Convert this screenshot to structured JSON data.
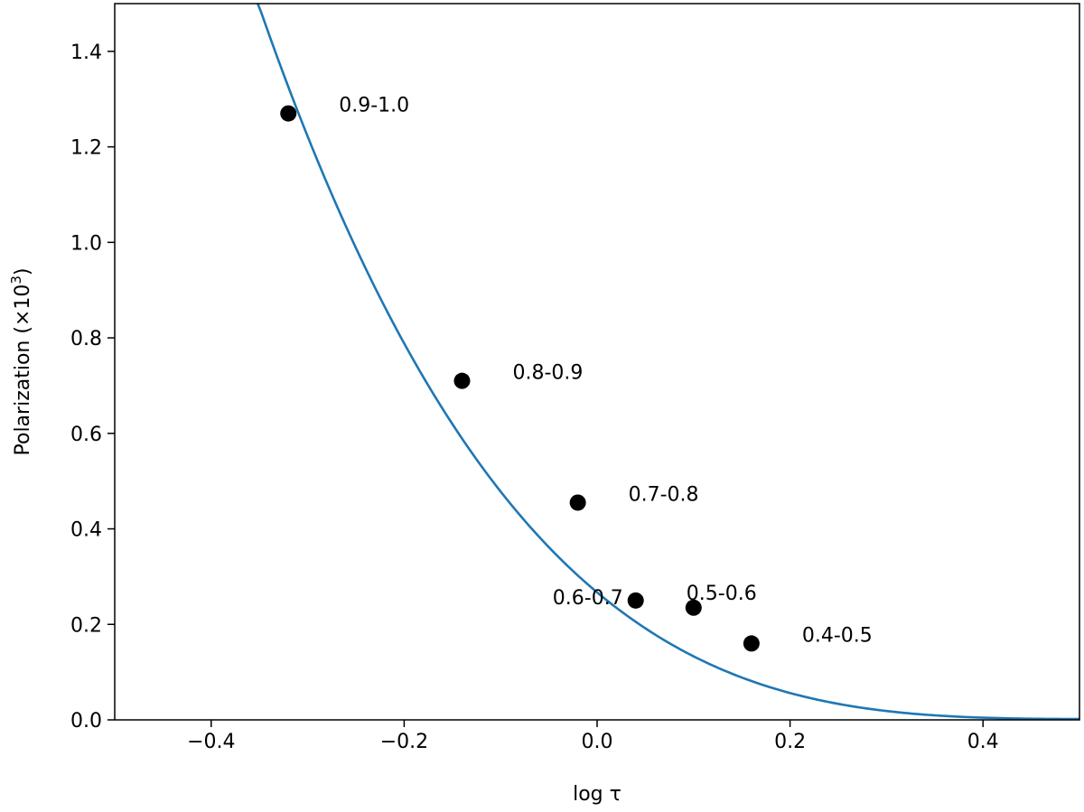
{
  "chart_data": {
    "type": "scatter",
    "title": "",
    "xlabel": "log τ",
    "ylabel": "Polarization (×10",
    "ylabel_sup": "3",
    "ylabel_close": ")",
    "xlim": [
      -0.5,
      0.5
    ],
    "ylim": [
      0.0,
      1.5
    ],
    "xticks": [
      -0.4,
      -0.2,
      0.0,
      0.2,
      0.4
    ],
    "xtick_labels": [
      "−0.4",
      "−0.2",
      "0.0",
      "0.2",
      "0.4"
    ],
    "yticks": [
      0.0,
      0.2,
      0.4,
      0.6,
      0.8,
      1.0,
      1.2,
      1.4
    ],
    "ytick_labels": [
      "0.0",
      "0.2",
      "0.4",
      "0.6",
      "0.8",
      "1.0",
      "1.2",
      "1.4"
    ],
    "grid": false,
    "points": [
      {
        "x": -0.32,
        "y": 1.27,
        "label": "0.9-1.0",
        "label_side": "right"
      },
      {
        "x": -0.14,
        "y": 0.71,
        "label": "0.8-0.9",
        "label_side": "right"
      },
      {
        "x": -0.02,
        "y": 0.455,
        "label": "0.7-0.8",
        "label_side": "right"
      },
      {
        "x": 0.04,
        "y": 0.25,
        "label": "0.6-0.7",
        "label_side": "left"
      },
      {
        "x": 0.1,
        "y": 0.235,
        "label": "0.5-0.6",
        "label_side": "above"
      },
      {
        "x": 0.16,
        "y": 0.16,
        "label": "0.4-0.5",
        "label_side": "right"
      }
    ],
    "curve": {
      "x": [
        -0.36,
        -0.34,
        -0.32,
        -0.3,
        -0.28,
        -0.26,
        -0.24,
        -0.22,
        -0.2,
        -0.18,
        -0.16,
        -0.14,
        -0.12,
        -0.1,
        -0.08,
        -0.06,
        -0.04,
        -0.02,
        0.0,
        0.02,
        0.04,
        0.06,
        0.08,
        0.1,
        0.12,
        0.14,
        0.16,
        0.18,
        0.2,
        0.22,
        0.24,
        0.26,
        0.28,
        0.3,
        0.32,
        0.34,
        0.36,
        0.38,
        0.4,
        0.42,
        0.44,
        0.46,
        0.48,
        0.5
      ],
      "y": [
        1.55,
        1.46,
        1.35,
        1.24,
        1.12,
        1.01,
        0.9,
        0.8,
        0.71,
        0.62,
        0.54,
        0.475,
        0.42,
        0.37,
        0.325,
        0.285,
        0.25,
        0.22,
        0.39,
        0.34,
        0.29,
        0.25,
        0.215,
        0.195,
        0.17,
        0.15,
        0.135,
        0.12,
        0.105,
        0.09,
        0.075,
        0.065,
        0.055,
        0.047,
        0.04,
        0.034,
        0.028,
        0.023,
        0.019,
        0.016,
        0.013,
        0.011,
        0.009,
        0.007
      ],
      "color": "#1f77b4"
    },
    "marker_color": "#000000"
  }
}
